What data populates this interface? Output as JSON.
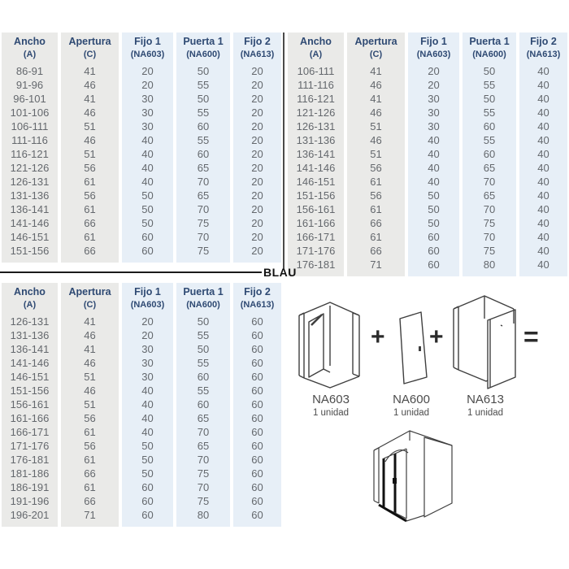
{
  "divider_label": "BLAU",
  "columns": [
    {
      "key": "ancho",
      "label": "Ancho",
      "sub": "(A)"
    },
    {
      "key": "apertura",
      "label": "Apertura",
      "sub": "(C)"
    },
    {
      "key": "fijo1",
      "label": "Fijo 1",
      "sub": "(NA603)"
    },
    {
      "key": "puerta1",
      "label": "Puerta 1",
      "sub": "(NA600)"
    },
    {
      "key": "fijo2",
      "label": "Fijo 2",
      "sub": "(NA613)"
    }
  ],
  "tables": [
    {
      "name": "spec-table-top-left",
      "rows": [
        [
          "86-91",
          "41",
          "20",
          "50",
          "20"
        ],
        [
          "91-96",
          "46",
          "20",
          "55",
          "20"
        ],
        [
          "96-101",
          "41",
          "30",
          "50",
          "20"
        ],
        [
          "101-106",
          "46",
          "30",
          "55",
          "20"
        ],
        [
          "106-111",
          "51",
          "30",
          "60",
          "20"
        ],
        [
          "111-116",
          "46",
          "40",
          "55",
          "20"
        ],
        [
          "116-121",
          "51",
          "40",
          "60",
          "20"
        ],
        [
          "121-126",
          "56",
          "40",
          "65",
          "20"
        ],
        [
          "126-131",
          "61",
          "40",
          "70",
          "20"
        ],
        [
          "131-136",
          "56",
          "50",
          "65",
          "20"
        ],
        [
          "136-141",
          "61",
          "50",
          "70",
          "20"
        ],
        [
          "141-146",
          "66",
          "50",
          "75",
          "20"
        ],
        [
          "146-151",
          "61",
          "60",
          "70",
          "20"
        ],
        [
          "151-156",
          "66",
          "60",
          "75",
          "20"
        ]
      ]
    },
    {
      "name": "spec-table-top-right",
      "rows": [
        [
          "106-111",
          "41",
          "20",
          "50",
          "40"
        ],
        [
          "111-116",
          "46",
          "20",
          "55",
          "40"
        ],
        [
          "116-121",
          "41",
          "30",
          "50",
          "40"
        ],
        [
          "121-126",
          "46",
          "30",
          "55",
          "40"
        ],
        [
          "126-131",
          "51",
          "30",
          "60",
          "40"
        ],
        [
          "131-136",
          "46",
          "40",
          "55",
          "40"
        ],
        [
          "136-141",
          "51",
          "40",
          "60",
          "40"
        ],
        [
          "141-146",
          "56",
          "40",
          "65",
          "40"
        ],
        [
          "146-151",
          "61",
          "40",
          "70",
          "40"
        ],
        [
          "151-156",
          "56",
          "50",
          "65",
          "40"
        ],
        [
          "156-161",
          "61",
          "50",
          "70",
          "40"
        ],
        [
          "161-166",
          "66",
          "50",
          "75",
          "40"
        ],
        [
          "166-171",
          "61",
          "60",
          "70",
          "40"
        ],
        [
          "171-176",
          "66",
          "60",
          "75",
          "40"
        ],
        [
          "176-181",
          "71",
          "60",
          "80",
          "40"
        ]
      ]
    },
    {
      "name": "spec-table-bottom-left",
      "rows": [
        [
          "126-131",
          "41",
          "20",
          "50",
          "60"
        ],
        [
          "131-136",
          "46",
          "20",
          "55",
          "60"
        ],
        [
          "136-141",
          "41",
          "30",
          "50",
          "60"
        ],
        [
          "141-146",
          "46",
          "30",
          "55",
          "60"
        ],
        [
          "146-151",
          "51",
          "30",
          "60",
          "60"
        ],
        [
          "151-156",
          "46",
          "40",
          "55",
          "60"
        ],
        [
          "156-161",
          "51",
          "40",
          "60",
          "60"
        ],
        [
          "161-166",
          "56",
          "40",
          "65",
          "60"
        ],
        [
          "166-171",
          "61",
          "40",
          "70",
          "60"
        ],
        [
          "171-176",
          "56",
          "50",
          "65",
          "60"
        ],
        [
          "176-181",
          "61",
          "50",
          "70",
          "60"
        ],
        [
          "181-186",
          "66",
          "50",
          "75",
          "60"
        ],
        [
          "186-191",
          "61",
          "60",
          "70",
          "60"
        ],
        [
          "191-196",
          "66",
          "60",
          "75",
          "60"
        ],
        [
          "196-201",
          "71",
          "60",
          "80",
          "60"
        ]
      ]
    }
  ],
  "diagram": {
    "components": [
      {
        "code": "NA603",
        "qty": "1 unidad"
      },
      {
        "code": "NA600",
        "qty": "1 unidad"
      },
      {
        "code": "NA613",
        "qty": "1 unidad"
      }
    ],
    "plus_sign": "+",
    "equals_sign": "="
  },
  "colors": {
    "header_text": "#2f4a73",
    "cell_text": "#64686d",
    "gray_column_bg": "#eaeae8",
    "blue_column_bg": "#e7eff7",
    "divider": "#1b1b1b",
    "sketch_stroke": "#3f3f3f"
  }
}
